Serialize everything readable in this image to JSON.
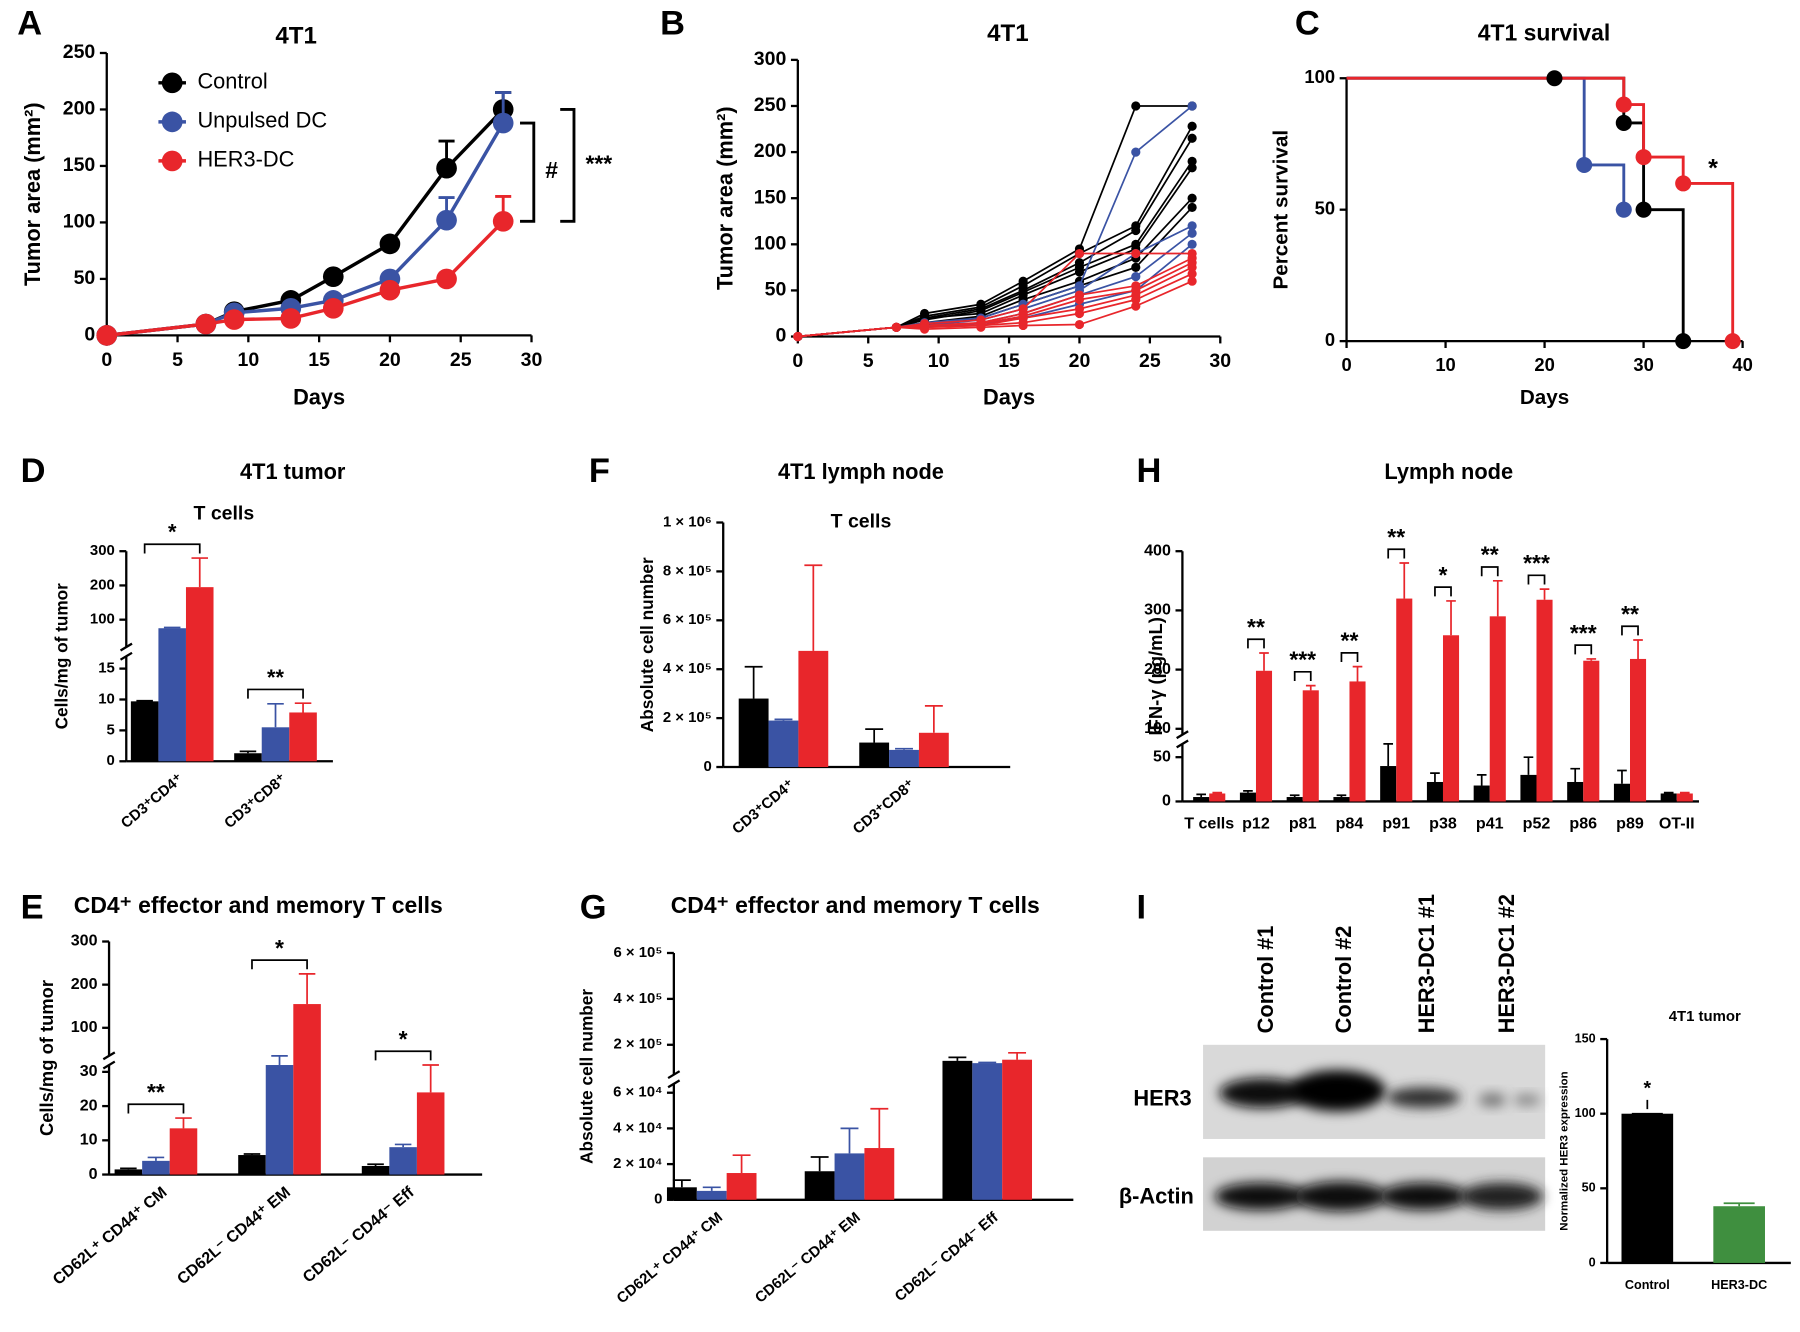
{
  "chart_data": [
    {
      "type": "line",
      "panel": "A",
      "title": "4T1",
      "xlabel": "Days",
      "ylabel": "Tumor area (mm²)",
      "x": [
        0,
        7,
        9,
        13,
        16,
        20,
        24,
        28
      ],
      "series": [
        {
          "name": "Control",
          "color": "#000000",
          "values": [
            0,
            10,
            21,
            31,
            52,
            81,
            148,
            200
          ],
          "errors": [
            0,
            0,
            0,
            0,
            0,
            0,
            24,
            15
          ]
        },
        {
          "name": "Unpulsed DC",
          "color": "#3a53a4",
          "values": [
            0,
            10,
            20,
            24,
            31,
            50,
            102,
            188
          ],
          "errors": [
            0,
            0,
            0,
            0,
            0,
            0,
            20,
            27
          ]
        },
        {
          "name": "HER3-DC",
          "color": "#e8262b",
          "values": [
            0,
            10,
            14,
            15,
            24,
            40,
            50,
            101
          ],
          "errors": [
            0,
            0,
            0,
            0,
            0,
            0,
            0,
            22
          ]
        }
      ],
      "xlim": [
        0,
        30
      ],
      "xticks": [
        0,
        5,
        10,
        15,
        20,
        25,
        30
      ],
      "ylim": [
        0,
        250
      ],
      "yticks": [
        0,
        50,
        100,
        150,
        200,
        250
      ],
      "legend": "upper left",
      "annotations": [
        "#",
        "***"
      ]
    },
    {
      "type": "line",
      "panel": "B",
      "title": "4T1",
      "xlabel": "Days",
      "ylabel": "Tumor area (mm²)",
      "x": [
        0,
        7,
        9,
        13,
        16,
        20,
        24,
        28
      ],
      "series": [
        {
          "color": "#000000",
          "values": [
            0,
            10,
            25,
            35,
            60,
            95,
            250,
            250
          ]
        },
        {
          "color": "#000000",
          "values": [
            0,
            10,
            22,
            32,
            55,
            90,
            120,
            228
          ]
        },
        {
          "color": "#000000",
          "values": [
            0,
            10,
            20,
            30,
            50,
            80,
            115,
            215
          ]
        },
        {
          "color": "#000000",
          "values": [
            0,
            10,
            18,
            28,
            48,
            75,
            100,
            190
          ]
        },
        {
          "color": "#000000",
          "values": [
            0,
            10,
            20,
            25,
            45,
            70,
            95,
            183
          ]
        },
        {
          "color": "#000000",
          "values": [
            0,
            10,
            15,
            22,
            40,
            60,
            85,
            150
          ]
        },
        {
          "color": "#000000",
          "values": [
            0,
            10,
            12,
            20,
            35,
            55,
            75,
            140
          ]
        },
        {
          "color": "#3a53a4",
          "values": [
            0,
            10,
            15,
            20,
            35,
            55,
            200,
            250
          ]
        },
        {
          "color": "#3a53a4",
          "values": [
            0,
            10,
            12,
            18,
            30,
            50,
            90,
            120
          ]
        },
        {
          "color": "#3a53a4",
          "values": [
            0,
            10,
            10,
            15,
            25,
            45,
            65,
            112
          ]
        },
        {
          "color": "#3a53a4",
          "values": [
            0,
            10,
            10,
            14,
            20,
            35,
            50,
            100
          ]
        },
        {
          "color": "#e8262b",
          "values": [
            0,
            10,
            14,
            18,
            30,
            90,
            90,
            90
          ]
        },
        {
          "color": "#e8262b",
          "values": [
            0,
            10,
            12,
            15,
            25,
            45,
            55,
            85
          ]
        },
        {
          "color": "#e8262b",
          "values": [
            0,
            10,
            12,
            14,
            22,
            40,
            50,
            80
          ]
        },
        {
          "color": "#e8262b",
          "values": [
            0,
            10,
            10,
            12,
            20,
            30,
            45,
            75
          ]
        },
        {
          "color": "#e8262b",
          "values": [
            0,
            10,
            10,
            12,
            15,
            25,
            40,
            68
          ]
        },
        {
          "color": "#e8262b",
          "values": [
            0,
            10,
            8,
            10,
            12,
            13,
            33,
            60
          ]
        }
      ],
      "xlim": [
        0,
        30
      ],
      "xticks": [
        0,
        5,
        10,
        15,
        20,
        25,
        30
      ],
      "ylim": [
        0,
        300
      ],
      "yticks": [
        0,
        50,
        100,
        150,
        200,
        250,
        300
      ]
    },
    {
      "type": "step",
      "panel": "C",
      "title": "4T1 survival",
      "xlabel": "Days",
      "ylabel": "Percent survival",
      "series": [
        {
          "color": "#000000",
          "x": [
            0,
            21,
            28,
            30,
            34
          ],
          "values": [
            100,
            100,
            83,
            50,
            0
          ]
        },
        {
          "color": "#3a53a4",
          "x": [
            0,
            24,
            28
          ],
          "values": [
            100,
            67,
            50
          ]
        },
        {
          "color": "#e8262b",
          "x": [
            0,
            28,
            30,
            34,
            39
          ],
          "values": [
            100,
            90,
            70,
            60,
            0
          ]
        }
      ],
      "xlim": [
        0,
        40
      ],
      "xticks": [
        0,
        10,
        20,
        30,
        40
      ],
      "ylim": [
        0,
        100
      ],
      "yticks": [
        0,
        50,
        100
      ],
      "annotations": [
        "*"
      ]
    },
    {
      "type": "bar",
      "panel": "D",
      "title": "4T1 tumor",
      "subtitle": "T cells",
      "ylabel": "Cells/mg of tumor",
      "categories": [
        "CD3⁺CD4⁺",
        "CD3⁺CD8⁺"
      ],
      "series": [
        {
          "color": "#000000",
          "values": [
            9.7,
            1.3
          ],
          "errors": [
            0.1,
            0.3
          ]
        },
        {
          "color": "#3a53a4",
          "values": [
            75,
            5.5
          ],
          "errors": [
            2,
            3.8
          ]
        },
        {
          "color": "#e8262b",
          "values": [
            195,
            7.9
          ],
          "errors": [
            85,
            1.5
          ]
        }
      ],
      "ylim": [
        0,
        300
      ],
      "ybreak": [
        17,
        20
      ],
      "yticks": [
        0,
        5,
        10,
        15,
        100,
        200,
        300
      ],
      "annotations": [
        "*",
        "**"
      ]
    },
    {
      "type": "bar",
      "panel": "E",
      "title": "CD4⁺ effector and memory T cells",
      "ylabel": "Cells/mg of tumor",
      "categories": [
        "CD62L⁺ CD44⁺ CM",
        "CD62L⁻ CD44⁺ EM",
        "CD62L⁻ CD44⁻ Eff"
      ],
      "series": [
        {
          "color": "#000000",
          "values": [
            1.5,
            5.7,
            2.5
          ],
          "errors": [
            0.3,
            0.3,
            0.5
          ]
        },
        {
          "color": "#3a53a4",
          "values": [
            4,
            32,
            8
          ],
          "errors": [
            1,
            2.5,
            0.8
          ]
        },
        {
          "color": "#e8262b",
          "values": [
            13.5,
            155,
            24
          ],
          "errors": [
            3,
            70,
            8
          ]
        }
      ],
      "ylim": [
        0,
        300
      ],
      "ybreak": [
        32,
        35
      ],
      "yticks": [
        0,
        10,
        20,
        30,
        100,
        200,
        300
      ],
      "annotations": [
        "**",
        "*",
        "*"
      ]
    },
    {
      "type": "bar",
      "panel": "F",
      "title": "4T1 lymph node",
      "subtitle": "T cells",
      "ylabel": "Absolute cell number",
      "categories": [
        "CD3⁺CD4⁺",
        "CD3⁺CD8⁺"
      ],
      "series": [
        {
          "color": "#000000",
          "values": [
            280000,
            100000
          ],
          "errors": [
            130000,
            55000
          ]
        },
        {
          "color": "#3a53a4",
          "values": [
            190000,
            70000
          ],
          "errors": [
            5000,
            5000
          ]
        },
        {
          "color": "#e8262b",
          "values": [
            475000,
            140000
          ],
          "errors": [
            350000,
            110000
          ]
        }
      ],
      "ylim": [
        0,
        1000000
      ],
      "yticks": [
        0,
        {
          "value": 200000,
          "label": "2 × 10⁵"
        },
        {
          "value": 400000,
          "label": "4 × 10⁵"
        },
        {
          "value": 600000,
          "label": "6 × 10⁵"
        },
        {
          "value": 800000,
          "label": "8 × 10⁵"
        },
        {
          "value": 1000000,
          "label": "1 × 10⁶"
        }
      ]
    },
    {
      "type": "bar",
      "panel": "G",
      "title": "CD4⁺ effector and memory T cells",
      "ylabel": "Absolute cell number",
      "categories": [
        "CD62L⁺ CD44⁺ CM",
        "CD62L⁻ CD44⁺ EM",
        "CD62L⁻ CD44⁻ Eff"
      ],
      "series": [
        {
          "color": "#000000",
          "values": [
            7000,
            16000,
            130000
          ],
          "errors": [
            4000,
            8000,
            15000
          ]
        },
        {
          "color": "#3a53a4",
          "values": [
            5000,
            26000,
            120000
          ],
          "errors": [
            2000,
            14000,
            3000
          ]
        },
        {
          "color": "#e8262b",
          "values": [
            15000,
            29000,
            135000
          ],
          "errors": [
            10000,
            22000,
            30000
          ]
        }
      ],
      "ylim": [
        0,
        600000
      ],
      "ybreak": [
        65000,
        70000
      ],
      "yticks": [
        0,
        {
          "value": 20000,
          "label": "2 × 10⁴"
        },
        {
          "value": 40000,
          "label": "4 × 10⁴"
        },
        {
          "value": 60000,
          "label": "6 × 10⁴"
        },
        {
          "value": 200000,
          "label": "2 × 10⁵"
        },
        {
          "value": 400000,
          "label": "4 × 10⁵"
        },
        {
          "value": 600000,
          "label": "6 × 10⁵"
        }
      ]
    },
    {
      "type": "bar",
      "panel": "H",
      "title": "Lymph node",
      "ylabel": "IFN-γ (pg/mL)",
      "categories": [
        "T cells",
        "p12",
        "p81",
        "p84",
        "p91",
        "p38",
        "p41",
        "p52",
        "p86",
        "p89",
        "OT-II"
      ],
      "series": [
        {
          "color": "#000000",
          "values": [
            5,
            10,
            5,
            5,
            40,
            22,
            18,
            30,
            22,
            20,
            9
          ],
          "errors": [
            3,
            2,
            2,
            2,
            25,
            10,
            12,
            20,
            15,
            15,
            1
          ]
        },
        {
          "color": "#e8262b",
          "values": [
            9,
            198,
            165,
            180,
            320,
            258,
            290,
            318,
            215,
            218,
            9
          ],
          "errors": [
            1,
            30,
            8,
            25,
            60,
            58,
            60,
            18,
            3,
            32,
            1
          ]
        }
      ],
      "ylim": [
        0,
        400
      ],
      "ybreak": [
        65,
        90
      ],
      "yticks": [
        0,
        50,
        100,
        200,
        300,
        400
      ],
      "annotations": [
        null,
        "**",
        "***",
        "**",
        "**",
        "*",
        "**",
        "***",
        "***",
        "**",
        null
      ]
    },
    {
      "type": "bar",
      "title": "4T1 tumor",
      "ylabel": "Normalized HER3 expression",
      "categories": [
        "Control",
        "HER3-DC"
      ],
      "values": [
        100,
        38
      ],
      "errors": [
        0,
        2
      ],
      "colors": [
        "#000000",
        "#3f8f3f"
      ],
      "ylim": [
        0,
        150
      ],
      "yticks": [
        0,
        50,
        100,
        150
      ],
      "annotations": [
        "*"
      ]
    }
  ],
  "blot": {
    "panel": "I",
    "lanes": [
      "Control #1",
      "Control #2",
      "HER3-DC1 #1",
      "HER3-DC1 #2"
    ],
    "rows": [
      "HER3",
      "β-Actin"
    ]
  }
}
